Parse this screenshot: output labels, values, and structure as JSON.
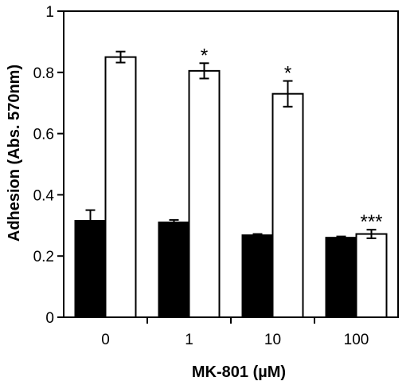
{
  "chart_data": {
    "type": "bar",
    "xlabel": "MK-801 (µM)",
    "ylabel": "Adhesion (Abs. 570nm)",
    "categories": [
      "0",
      "1",
      "10",
      "100"
    ],
    "ylim": [
      0,
      1
    ],
    "yticks": [
      "0",
      "0.2",
      "0.4",
      "0.6",
      "0.8",
      "1"
    ],
    "grid": false,
    "legend": "none",
    "series": [
      {
        "fill": "#000000",
        "values": [
          0.315,
          0.31,
          0.268,
          0.26
        ],
        "errors": [
          0.035,
          0.008,
          0.004,
          0.004
        ]
      },
      {
        "fill": "#ffffff",
        "values": [
          0.85,
          0.805,
          0.73,
          0.272
        ],
        "errors": [
          0.018,
          0.025,
          0.042,
          0.014
        ]
      }
    ],
    "annotations": [
      "",
      "*",
      "*",
      "***"
    ]
  }
}
